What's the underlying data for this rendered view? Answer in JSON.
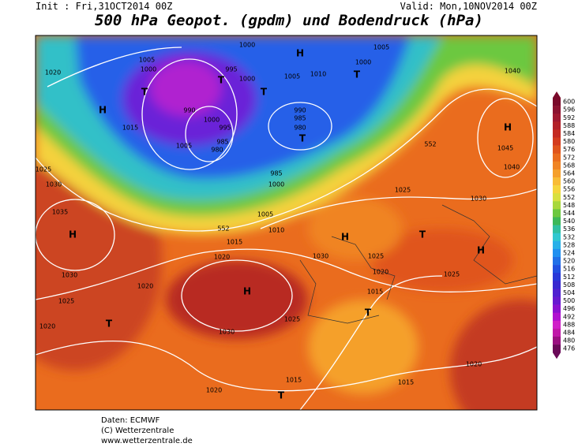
{
  "header": {
    "init": "Init : Fri,31OCT2014 00Z",
    "valid": "Valid: Mon,10NOV2014 00Z",
    "title": "500 hPa Geopot. (gpdm) und Bodendruck (hPa)"
  },
  "colorbar": {
    "values": [
      600,
      596,
      592,
      588,
      584,
      580,
      576,
      572,
      568,
      564,
      560,
      556,
      552,
      548,
      544,
      540,
      536,
      532,
      528,
      524,
      520,
      516,
      512,
      508,
      504,
      500,
      496,
      492,
      488,
      484,
      480,
      476
    ],
    "colors": [
      "#7a0a2a",
      "#8c1230",
      "#a01830",
      "#b22028",
      "#c42b22",
      "#d43c1e",
      "#e0541c",
      "#ea6c1e",
      "#f08424",
      "#f5a02c",
      "#f8bc36",
      "#f5d53c",
      "#d8e040",
      "#a8d83c",
      "#6cc840",
      "#3cb858",
      "#30c0a0",
      "#30c8d0",
      "#28b0e8",
      "#2090f0",
      "#2070e8",
      "#2050e0",
      "#2838d8",
      "#3828d0",
      "#5020d0",
      "#6818d0",
      "#8a10d0",
      "#b010d0",
      "#d020c8",
      "#c018a8",
      "#9a1080",
      "#6a0a58"
    ]
  },
  "labels": [
    "1020",
    "H",
    "T",
    "T",
    "995",
    "1000",
    "1005",
    "1000",
    "990",
    "1000",
    "995",
    "985",
    "980",
    "1005",
    "1015",
    "T",
    "1005",
    "1010",
    "H",
    "1000",
    "1005",
    "1000",
    "T",
    "990",
    "985",
    "980",
    "T",
    "985",
    "1000",
    "1005",
    "1010",
    "1015",
    "1020",
    "552",
    "552",
    "1025",
    "1030",
    "1035",
    "H",
    "1030",
    "1025",
    "1020",
    "T",
    "1020",
    "H",
    "1030",
    "1025",
    "1030",
    "H",
    "1025",
    "1020",
    "1015",
    "T",
    "T",
    "1025",
    "H",
    "1030",
    "1025",
    "H",
    "1045",
    "1040",
    "1040",
    "1020",
    "1015",
    "1015",
    "T",
    "1020"
  ],
  "footer": [
    "Daten: ECMWF",
    "(C) Wetterzentrale",
    "www.wetterzentrale.de"
  ]
}
